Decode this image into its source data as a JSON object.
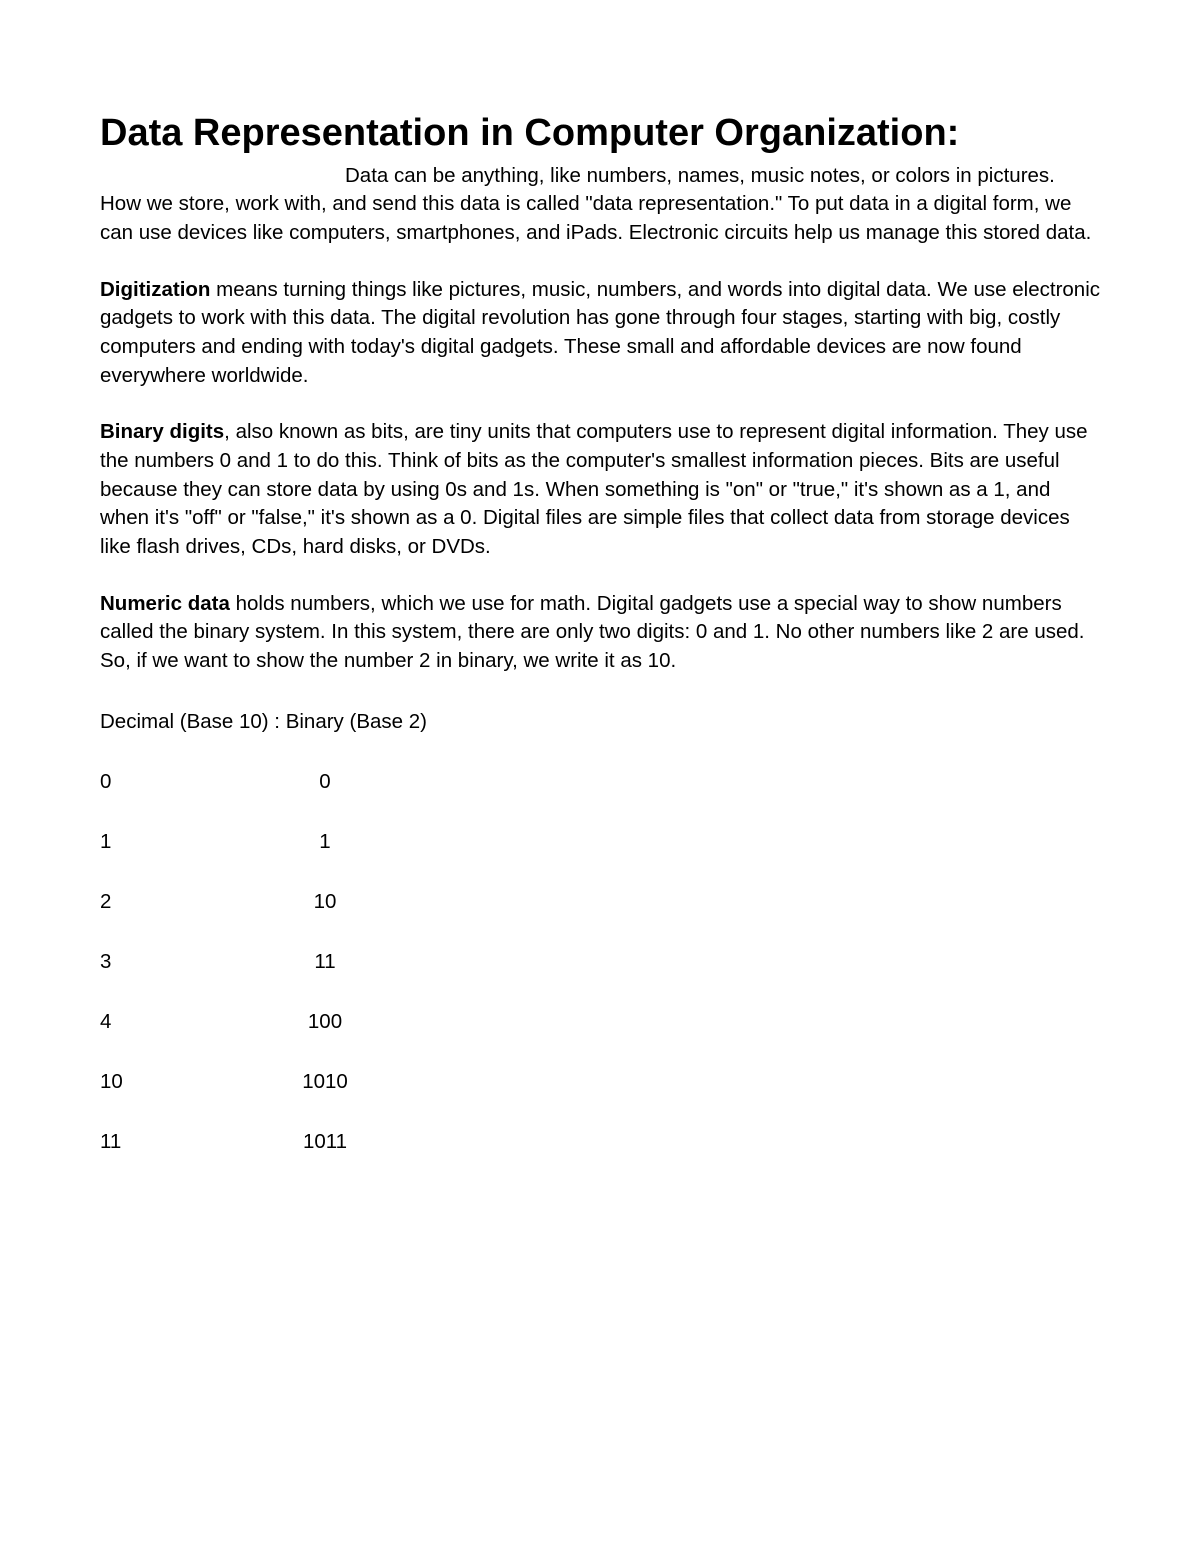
{
  "title": "Data Representation in Computer Organization:",
  "paragraphs": {
    "intro": "Data can be anything, like numbers, names, music notes, or colors in pictures. How we store, work with, and send this data is called \"data representation.\" To put data in a digital form, we can use devices like computers, smartphones, and iPads. Electronic circuits help us manage this stored data.",
    "digitization_lead": "Digitization",
    "digitization_rest": " means turning things like pictures, music, numbers, and words into digital data. We use electronic gadgets to work with this data. The digital revolution has gone through four stages, starting with big, costly computers and ending with today's digital gadgets. These small and affordable devices are now found everywhere worldwide.",
    "binary_lead": "Binary digits",
    "binary_rest": ", also known as bits, are tiny units that computers use to represent digital information. They use the numbers 0 and 1 to do this. Think of bits as the computer's smallest information pieces. Bits are useful because they can store data by using 0s and 1s. When something is \"on\" or \"true,\" it's shown as a 1, and when it's \"off\" or \"false,\" it's shown as a 0. Digital files are simple files that collect data from storage devices like flash drives, CDs, hard disks, or DVDs.",
    "numeric_lead": "Numeric data",
    "numeric_rest": " holds numbers, which we use for math. Digital gadgets use a special way to show numbers called the binary system. In this system, there are only two digits: 0 and 1. No other numbers like 2 are used. So, if we want to show the number 2 in binary, we write it as 10."
  },
  "table": {
    "header": "Decimal (Base 10)  :  Binary (Base 2)",
    "rows": [
      {
        "decimal": "0",
        "binary": "0"
      },
      {
        "decimal": "1",
        "binary": "1"
      },
      {
        "decimal": "2",
        "binary": "10"
      },
      {
        "decimal": "3",
        "binary": "11"
      },
      {
        "decimal": "4",
        "binary": "100"
      },
      {
        "decimal": "10",
        "binary": "1010"
      },
      {
        "decimal": "11",
        "binary": "1011"
      }
    ]
  }
}
